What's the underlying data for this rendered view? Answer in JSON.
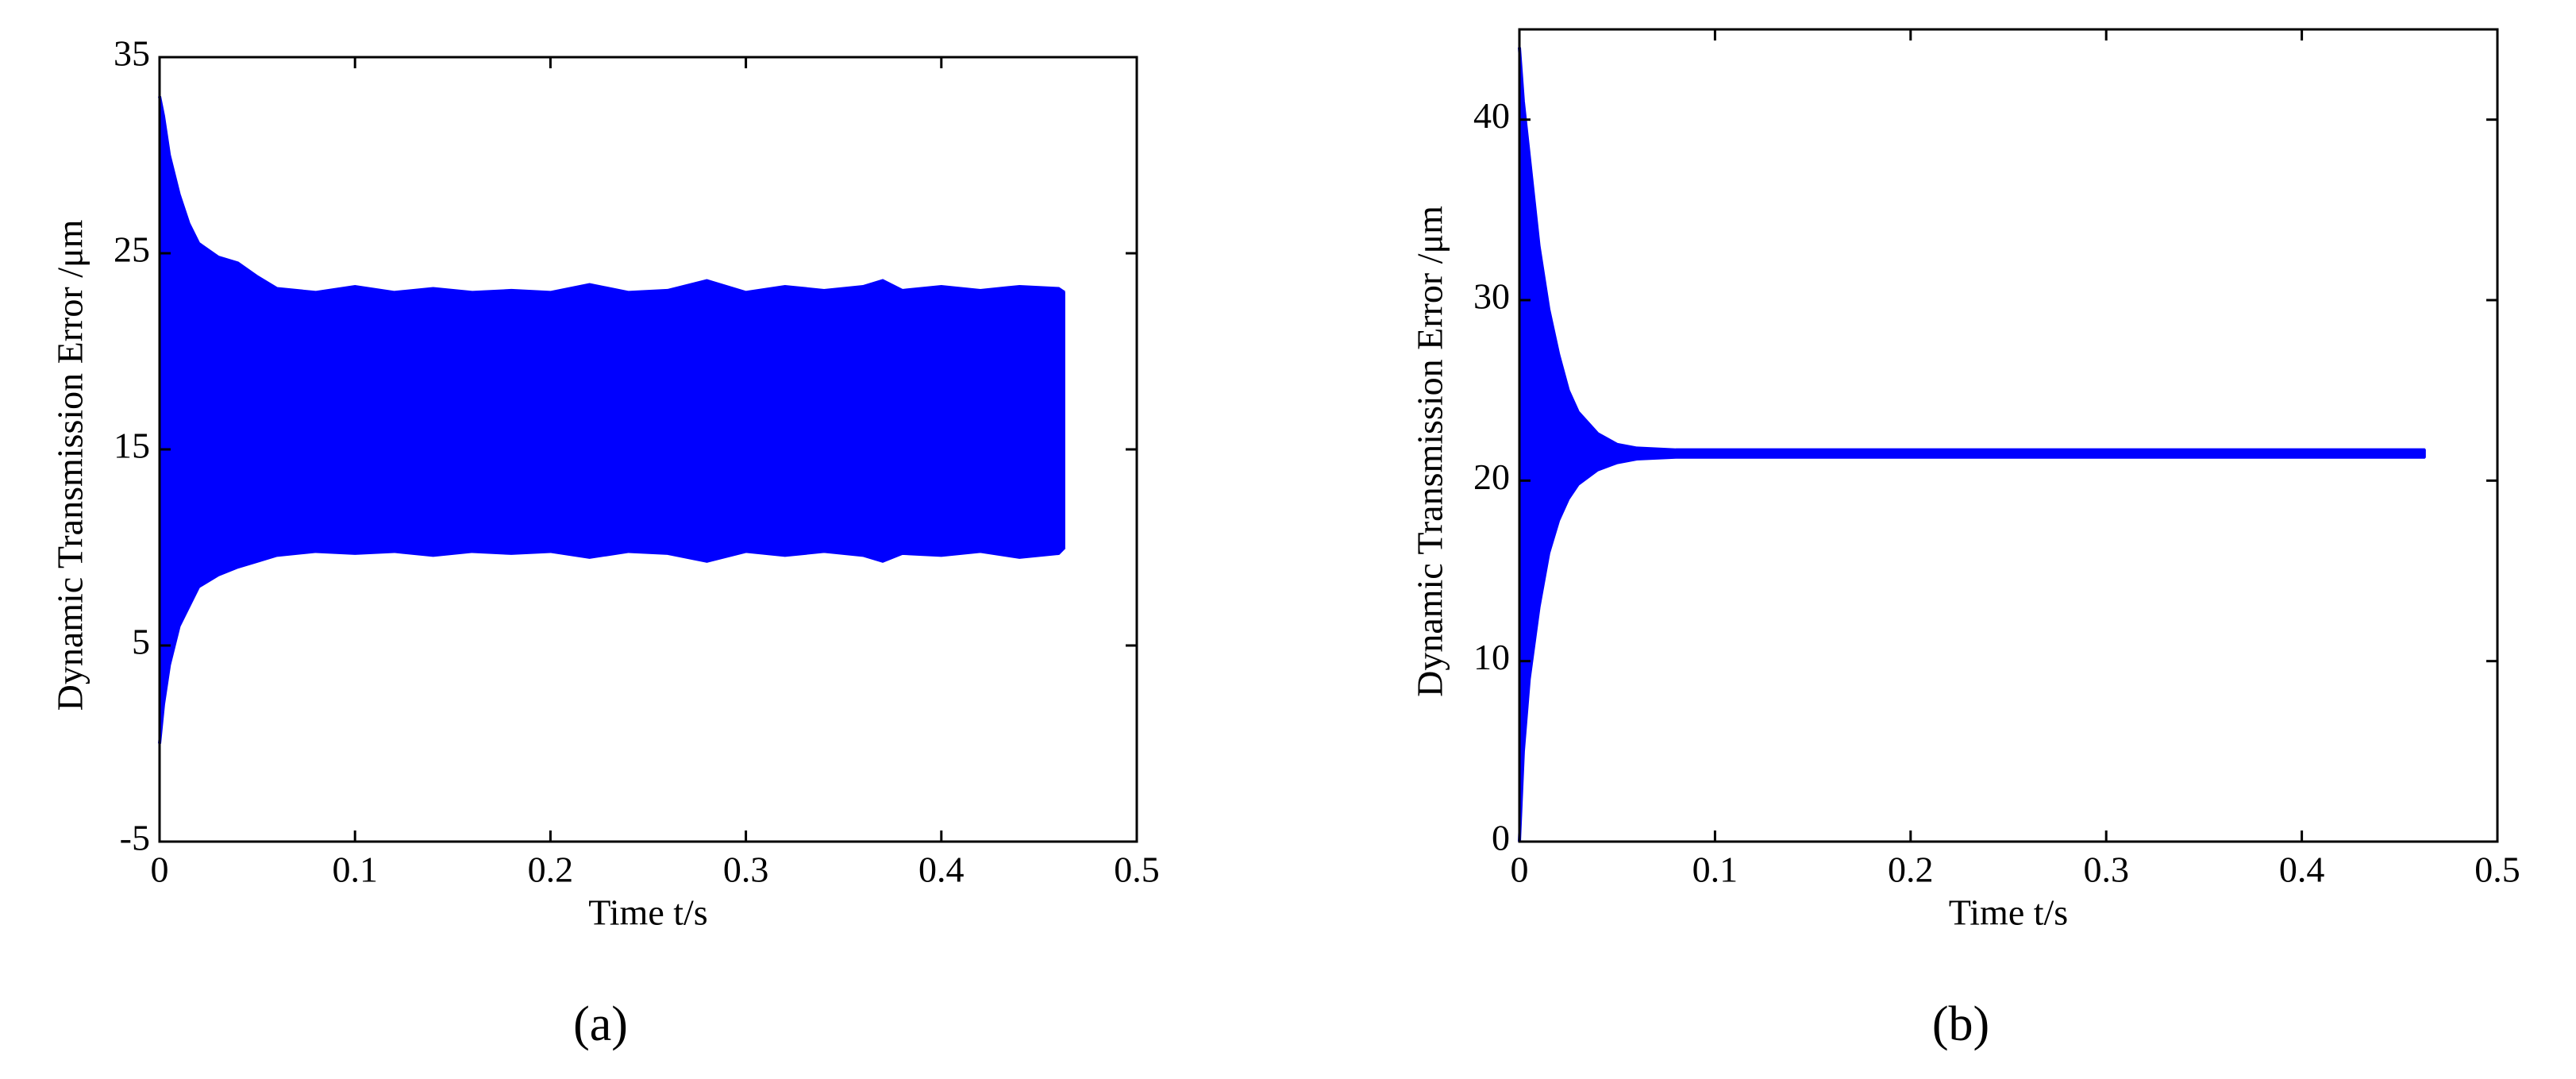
{
  "chart_data": [
    {
      "type": "band",
      "caption": "(a)",
      "xlabel": "Time t/s",
      "ylabel": "Dynamic Transmission Error /μm",
      "xlim": [
        0,
        0.5
      ],
      "xticks": [
        0,
        0.1,
        0.2,
        0.3,
        0.4,
        0.5
      ],
      "ylim": [
        -5,
        35
      ],
      "yticks": [
        -5,
        5,
        15,
        25,
        35
      ],
      "x": [
        0,
        0.002,
        0.005,
        0.01,
        0.015,
        0.02,
        0.03,
        0.04,
        0.05,
        0.06,
        0.08,
        0.1,
        0.12,
        0.14,
        0.16,
        0.18,
        0.2,
        0.22,
        0.24,
        0.26,
        0.28,
        0.3,
        0.32,
        0.34,
        0.36,
        0.37,
        0.38,
        0.4,
        0.42,
        0.44,
        0.46,
        0.463
      ],
      "series": [
        {
          "color": "#0000ff",
          "values": [
            33,
            32,
            30,
            28,
            26.5,
            25.5,
            24.8,
            24.5,
            23.8,
            23.2,
            23,
            23.3,
            23,
            23.2,
            23,
            23.1,
            23,
            23.4,
            23,
            23.1,
            23.6,
            23,
            23.3,
            23.1,
            23.3,
            23.6,
            23.1,
            23.3,
            23.1,
            23.3,
            23.2,
            23
          ]
        },
        {
          "color": "#0000ff",
          "values": [
            0,
            2,
            4,
            6,
            7,
            8,
            8.6,
            9,
            9.3,
            9.6,
            9.8,
            9.7,
            9.8,
            9.6,
            9.8,
            9.7,
            9.8,
            9.5,
            9.8,
            9.7,
            9.3,
            9.8,
            9.6,
            9.8,
            9.6,
            9.3,
            9.7,
            9.6,
            9.8,
            9.5,
            9.7,
            10
          ]
        }
      ]
    },
    {
      "type": "band",
      "caption": "(b)",
      "xlabel": "Time t/s",
      "ylabel": "Dynamic Transmission Error /μm",
      "xlim": [
        0,
        0.5
      ],
      "xticks": [
        0,
        0.1,
        0.2,
        0.3,
        0.4,
        0.5
      ],
      "ylim": [
        0,
        45
      ],
      "yticks": [
        0,
        10,
        20,
        30,
        40
      ],
      "x": [
        0,
        0.002,
        0.005,
        0.01,
        0.015,
        0.02,
        0.025,
        0.03,
        0.04,
        0.05,
        0.06,
        0.08,
        0.1,
        0.2,
        0.3,
        0.4,
        0.463
      ],
      "series": [
        {
          "color": "#0000ff",
          "values": [
            44,
            41,
            38,
            33,
            29.5,
            27,
            25,
            23.8,
            22.6,
            22,
            21.8,
            21.7,
            21.7,
            21.7,
            21.7,
            21.7,
            21.7
          ]
        },
        {
          "color": "#0000ff",
          "values": [
            0,
            5,
            9,
            13,
            16,
            17.8,
            19,
            19.8,
            20.6,
            21,
            21.2,
            21.3,
            21.3,
            21.3,
            21.3,
            21.3,
            21.3
          ]
        }
      ]
    }
  ]
}
